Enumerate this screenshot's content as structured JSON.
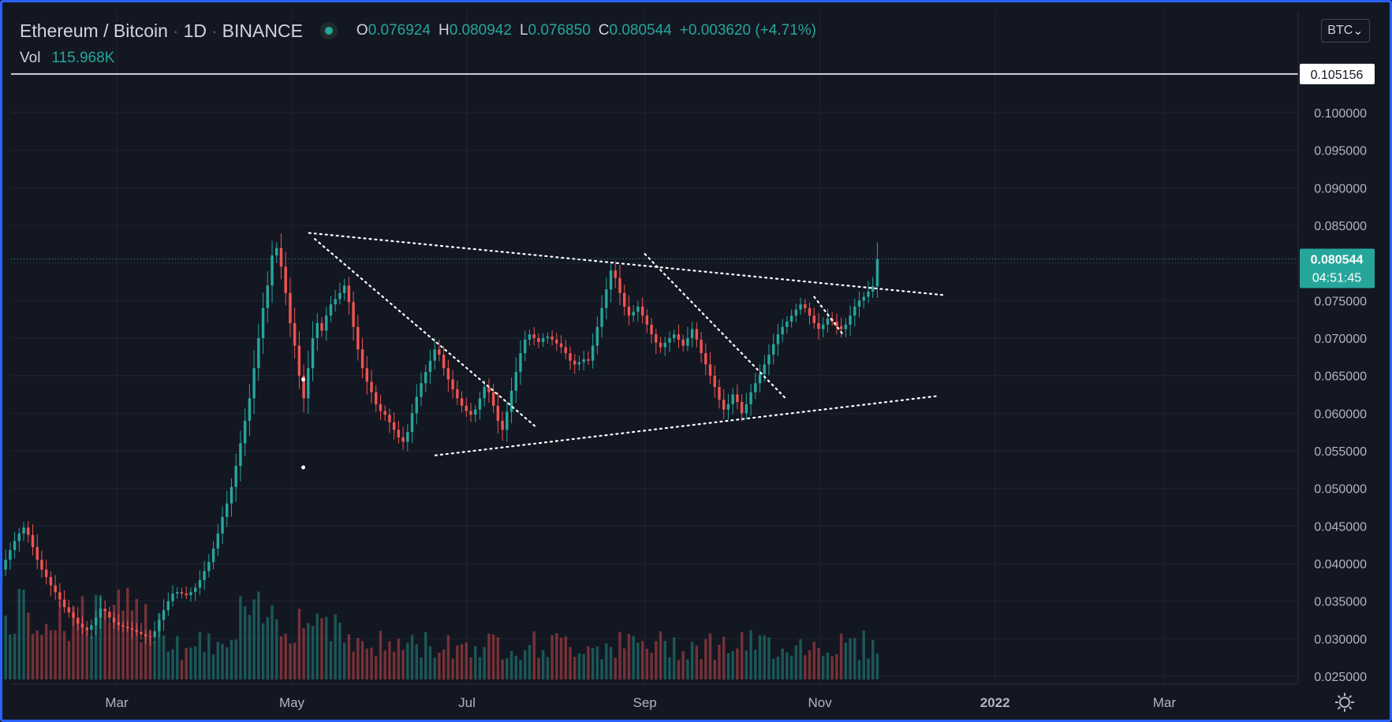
{
  "header": {
    "symbol": "Ethereum / Bitcoin",
    "interval": "1D",
    "exchange": "BINANCE",
    "ohlc": [
      {
        "key": "O",
        "value": "0.076924"
      },
      {
        "key": "H",
        "value": "0.080942"
      },
      {
        "key": "L",
        "value": "0.076850"
      },
      {
        "key": "C",
        "value": "0.080544"
      }
    ],
    "change": "+0.003620 (+4.71%)",
    "volume_label": "Vol",
    "volume_value": "115.968K"
  },
  "currency_button": "BTC",
  "colors": {
    "background": "#131722",
    "up": "#26a69a",
    "down": "#ef5350",
    "grid": "#1f2430",
    "axis_text": "#b2b5be",
    "frame": "#2962ff"
  },
  "chart_data": {
    "type": "candlestick",
    "x_axis_labels": [
      "Mar",
      "May",
      "Jul",
      "Sep",
      "Nov",
      "2022",
      "Mar"
    ],
    "y_tick_labels": [
      "0.100000",
      "0.095000",
      "0.090000",
      "0.085000",
      "0.080000",
      "0.075000",
      "0.070000",
      "0.065000",
      "0.060000",
      "0.055000",
      "0.050000",
      "0.045000",
      "0.040000",
      "0.035000",
      "0.030000",
      "0.025000"
    ],
    "y_ticks": [
      0.1,
      0.095,
      0.09,
      0.085,
      0.08,
      0.075,
      0.07,
      0.065,
      0.06,
      0.055,
      0.05,
      0.045,
      0.04,
      0.035,
      0.03,
      0.025
    ],
    "ylim": [
      0.0235,
      0.1105
    ],
    "date_range": [
      "2021-01-15",
      "2021-11-21"
    ],
    "closes": [
      0.0398,
      0.0385,
      0.0372,
      0.0392,
      0.0405,
      0.0418,
      0.043,
      0.044,
      0.0448,
      0.0438,
      0.0422,
      0.0405,
      0.0392,
      0.0382,
      0.0371,
      0.0362,
      0.0352,
      0.0342,
      0.0335,
      0.0328,
      0.032,
      0.0315,
      0.0312,
      0.0318,
      0.0328,
      0.034,
      0.0336,
      0.0328,
      0.0322,
      0.0318,
      0.0316,
      0.0314,
      0.0312,
      0.0309,
      0.0306,
      0.0303,
      0.0302,
      0.031,
      0.0325,
      0.0338,
      0.035,
      0.036,
      0.0362,
      0.036,
      0.0358,
      0.0362,
      0.0368,
      0.0378,
      0.039,
      0.0402,
      0.042,
      0.044,
      0.0462,
      0.048,
      0.0502,
      0.053,
      0.056,
      0.059,
      0.062,
      0.066,
      0.07,
      0.074,
      0.077,
      0.081,
      0.082,
      0.0795,
      0.076,
      0.072,
      0.069,
      0.065,
      0.062,
      0.066,
      0.07,
      0.072,
      0.071,
      0.073,
      0.0745,
      0.0752,
      0.076,
      0.077,
      0.0748,
      0.0715,
      0.0685,
      0.066,
      0.0642,
      0.0628,
      0.0612,
      0.0603,
      0.0598,
      0.0588,
      0.0578,
      0.0568,
      0.0562,
      0.0575,
      0.06,
      0.0622,
      0.064,
      0.0655,
      0.067,
      0.0685,
      0.0678,
      0.066,
      0.0645,
      0.0632,
      0.062,
      0.061,
      0.0603,
      0.0598,
      0.0605,
      0.062,
      0.0635,
      0.0628,
      0.061,
      0.059,
      0.0578,
      0.0602,
      0.063,
      0.0655,
      0.068,
      0.0698,
      0.0705,
      0.07,
      0.0695,
      0.07,
      0.0702,
      0.0698,
      0.0693,
      0.0688,
      0.068,
      0.067,
      0.0665,
      0.0668,
      0.0672,
      0.067,
      0.069,
      0.0715,
      0.074,
      0.0765,
      0.079,
      0.078,
      0.076,
      0.0742,
      0.073,
      0.0735,
      0.0742,
      0.073,
      0.0718,
      0.0705,
      0.0694,
      0.0688,
      0.0694,
      0.07,
      0.0705,
      0.0698,
      0.069,
      0.07,
      0.0712,
      0.0698,
      0.068,
      0.0665,
      0.065,
      0.0635,
      0.0618,
      0.0605,
      0.0612,
      0.0625,
      0.0615,
      0.06,
      0.0612,
      0.0628,
      0.064,
      0.0652,
      0.0665,
      0.0678,
      0.0692,
      0.0705,
      0.0715,
      0.0722,
      0.073,
      0.0738,
      0.0745,
      0.074,
      0.073,
      0.072,
      0.0712,
      0.0718,
      0.0726,
      0.0722,
      0.0716,
      0.0712,
      0.0718,
      0.073,
      0.0742,
      0.075,
      0.0755,
      0.0762,
      0.0769,
      0.0805
    ]
  },
  "annotations": {
    "horizontal_level": "0.105156",
    "last_price": "0.080544",
    "countdown": "04:51:45"
  }
}
